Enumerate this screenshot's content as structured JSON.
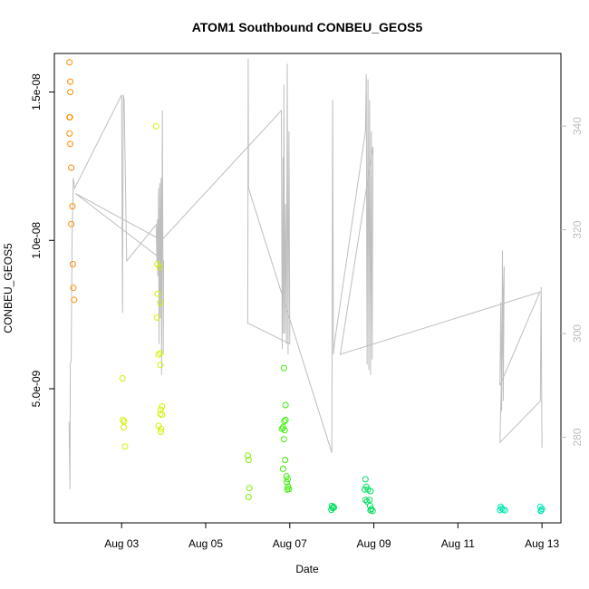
{
  "chart_data": {
    "type": "scatter",
    "title": "ATOM1 Southbound CONBEU_GEOS5",
    "xlabel": "Date",
    "ylabel": "CONBEU_GEOS5",
    "x_axis": {
      "ticks": [
        3,
        5,
        7,
        9,
        11,
        13
      ],
      "tick_labels": [
        "Aug 03",
        "Aug 05",
        "Aug 07",
        "Aug 09",
        "Aug 11",
        "Aug 13"
      ],
      "range_days": [
        1.4,
        13.45
      ]
    },
    "y_axis_left": {
      "ticks": [
        5e-09,
        1e-08,
        1.5e-08
      ],
      "tick_labels": [
        "5.0e-09",
        "1.0e-08",
        "1.5e-08"
      ],
      "range": [
        4.8e-10,
        1.63e-08
      ]
    },
    "y_axis_right": {
      "ticks": [
        280,
        300,
        320,
        340
      ],
      "tick_labels": [
        "280",
        "300",
        "320",
        "340"
      ],
      "range": [
        263.5,
        354
      ],
      "color": "#bebebe"
    },
    "line_color": "#bebebe",
    "scatter_series": {
      "marker": "open-circle",
      "points": [
        {
          "x": 1.76,
          "y": 1.6e-08,
          "c": "#ff8c00"
        },
        {
          "x": 1.78,
          "y": 1.535e-08,
          "c": "#ff8c00"
        },
        {
          "x": 1.78,
          "y": 1.5e-08,
          "c": "#ff8c00"
        },
        {
          "x": 1.77,
          "y": 1.415e-08,
          "c": "#ff8c00"
        },
        {
          "x": 1.76,
          "y": 1.415e-08,
          "c": "#ff8c00"
        },
        {
          "x": 1.76,
          "y": 1.36e-08,
          "c": "#ff8c00"
        },
        {
          "x": 1.78,
          "y": 1.325e-08,
          "c": "#ff8c00"
        },
        {
          "x": 1.8,
          "y": 1.245e-08,
          "c": "#ff8c00"
        },
        {
          "x": 1.83,
          "y": 1.115e-08,
          "c": "#ff8c00"
        },
        {
          "x": 1.8,
          "y": 1.055e-08,
          "c": "#ff8c00"
        },
        {
          "x": 1.84,
          "y": 9.2e-09,
          "c": "#ff8c00"
        },
        {
          "x": 1.85,
          "y": 8.4e-09,
          "c": "#ff8c00"
        },
        {
          "x": 1.87,
          "y": 8e-09,
          "c": "#ff8c00"
        },
        {
          "x": 3.02,
          "y": 5.35e-09,
          "c": "#d4f000"
        },
        {
          "x": 3.03,
          "y": 3.95e-09,
          "c": "#d4f000"
        },
        {
          "x": 3.06,
          "y": 3.9e-09,
          "c": "#d4f000"
        },
        {
          "x": 3.05,
          "y": 3.7e-09,
          "c": "#d4f000"
        },
        {
          "x": 3.08,
          "y": 3.05e-09,
          "c": "#d4f000"
        },
        {
          "x": 3.82,
          "y": 1.385e-08,
          "c": "#d4f000"
        },
        {
          "x": 3.85,
          "y": 9.2e-09,
          "c": "#d4f000"
        },
        {
          "x": 3.9,
          "y": 9.1e-09,
          "c": "#d4f000"
        },
        {
          "x": 3.86,
          "y": 8.2e-09,
          "c": "#d4f000"
        },
        {
          "x": 3.92,
          "y": 7.9e-09,
          "c": "#d4f000"
        },
        {
          "x": 3.84,
          "y": 7.4e-09,
          "c": "#d4f000"
        },
        {
          "x": 3.88,
          "y": 6.15e-09,
          "c": "#d4f000"
        },
        {
          "x": 3.92,
          "y": 6.2e-09,
          "c": "#d4f000"
        },
        {
          "x": 3.92,
          "y": 5.8e-09,
          "c": "#d4f000"
        },
        {
          "x": 3.96,
          "y": 4.4e-09,
          "c": "#d4f000"
        },
        {
          "x": 3.93,
          "y": 4.3e-09,
          "c": "#d4f000"
        },
        {
          "x": 3.92,
          "y": 4.15e-09,
          "c": "#d4f000"
        },
        {
          "x": 3.96,
          "y": 4.12e-09,
          "c": "#d4f000"
        },
        {
          "x": 3.88,
          "y": 3.75e-09,
          "c": "#d4f000"
        },
        {
          "x": 3.94,
          "y": 3.65e-09,
          "c": "#d4f000"
        },
        {
          "x": 3.93,
          "y": 3.55e-09,
          "c": "#d4f000"
        },
        {
          "x": 6.0,
          "y": 2.75e-09,
          "c": "#7cf000"
        },
        {
          "x": 6.02,
          "y": 2.6e-09,
          "c": "#7cf000"
        },
        {
          "x": 6.04,
          "y": 1.65e-09,
          "c": "#7cf000"
        },
        {
          "x": 6.02,
          "y": 1.35e-09,
          "c": "#7cf000"
        },
        {
          "x": 6.86,
          "y": 5.7e-09,
          "c": "#38f000"
        },
        {
          "x": 6.9,
          "y": 4.45e-09,
          "c": "#38f000"
        },
        {
          "x": 6.9,
          "y": 3.95e-09,
          "c": "#38f000"
        },
        {
          "x": 6.87,
          "y": 3.9e-09,
          "c": "#38f000"
        },
        {
          "x": 6.84,
          "y": 3.7e-09,
          "c": "#38f000"
        },
        {
          "x": 6.81,
          "y": 3.65e-09,
          "c": "#38f000"
        },
        {
          "x": 6.88,
          "y": 3.6e-09,
          "c": "#38f000"
        },
        {
          "x": 6.86,
          "y": 3.3e-09,
          "c": "#38f000"
        },
        {
          "x": 6.89,
          "y": 2.6e-09,
          "c": "#38f000"
        },
        {
          "x": 6.84,
          "y": 2.3e-09,
          "c": "#38f000"
        },
        {
          "x": 6.92,
          "y": 2.05e-09,
          "c": "#38f000"
        },
        {
          "x": 6.95,
          "y": 1.95e-09,
          "c": "#38f000"
        },
        {
          "x": 6.93,
          "y": 1.85e-09,
          "c": "#38f000"
        },
        {
          "x": 6.96,
          "y": 1.7e-09,
          "c": "#38f000"
        },
        {
          "x": 6.94,
          "y": 1.6e-09,
          "c": "#38f000"
        },
        {
          "x": 6.98,
          "y": 1.62e-09,
          "c": "#38f000"
        },
        {
          "x": 8.0,
          "y": 1.05e-09,
          "c": "#00e060"
        },
        {
          "x": 8.02,
          "y": 9.8e-10,
          "c": "#00e060"
        },
        {
          "x": 8.04,
          "y": 1.02e-09,
          "c": "#00e060"
        },
        {
          "x": 8.05,
          "y": 1e-09,
          "c": "#00e060"
        },
        {
          "x": 7.99,
          "y": 9.2e-10,
          "c": "#00e060"
        },
        {
          "x": 8.8,
          "y": 1.95e-09,
          "c": "#00e060"
        },
        {
          "x": 8.82,
          "y": 1.7e-09,
          "c": "#00e060"
        },
        {
          "x": 8.86,
          "y": 1.6e-09,
          "c": "#00e060"
        },
        {
          "x": 8.78,
          "y": 1.6e-09,
          "c": "#00e060"
        },
        {
          "x": 8.92,
          "y": 1.55e-09,
          "c": "#00e060"
        },
        {
          "x": 8.8,
          "y": 1.25e-09,
          "c": "#00e060"
        },
        {
          "x": 8.84,
          "y": 1.2e-09,
          "c": "#00e060"
        },
        {
          "x": 8.9,
          "y": 1.25e-09,
          "c": "#00e060"
        },
        {
          "x": 8.91,
          "y": 1.05e-09,
          "c": "#00e060"
        },
        {
          "x": 8.94,
          "y": 9.5e-10,
          "c": "#00e060"
        },
        {
          "x": 8.92,
          "y": 9e-10,
          "c": "#00e060"
        },
        {
          "x": 8.97,
          "y": 8.8e-10,
          "c": "#00e060"
        },
        {
          "x": 12.02,
          "y": 1.02e-09,
          "c": "#00e8b0"
        },
        {
          "x": 12.04,
          "y": 9.6e-10,
          "c": "#00e8b0"
        },
        {
          "x": 12.0,
          "y": 9.1e-10,
          "c": "#00e8b0"
        },
        {
          "x": 12.08,
          "y": 9.3e-10,
          "c": "#00e8b0"
        },
        {
          "x": 12.12,
          "y": 9e-10,
          "c": "#00e8b0"
        },
        {
          "x": 12.96,
          "y": 1.02e-09,
          "c": "#00e8b0"
        },
        {
          "x": 12.98,
          "y": 9e-10,
          "c": "#00e8b0"
        },
        {
          "x": 13.0,
          "y": 9.5e-10,
          "c": "#00e8b0"
        },
        {
          "x": 12.97,
          "y": 8.8e-10,
          "c": "#00e8b0"
        }
      ]
    },
    "line_series": {
      "axis": "right",
      "points": [
        [
          1.75,
          283
        ],
        [
          1.77,
          270
        ],
        [
          1.78,
          294
        ],
        [
          1.8,
          295
        ],
        [
          1.82,
          318
        ],
        [
          1.85,
          330
        ],
        [
          1.88,
          328
        ],
        [
          3.0,
          346
        ],
        [
          3.02,
          304
        ],
        [
          3.04,
          346
        ],
        [
          3.06,
          345
        ],
        [
          3.12,
          314
        ],
        [
          3.82,
          321
        ],
        [
          3.84,
          314
        ],
        [
          3.85,
          322
        ],
        [
          3.86,
          311
        ],
        [
          3.88,
          328
        ],
        [
          3.89,
          298
        ],
        [
          3.91,
          329
        ],
        [
          3.92,
          303
        ],
        [
          3.94,
          330
        ],
        [
          3.95,
          292
        ],
        [
          3.97,
          343
        ],
        [
          3.99,
          296
        ],
        [
          4.0,
          314
        ],
        [
          1.9,
          327
        ],
        [
          3.95,
          318
        ],
        [
          6.8,
          343
        ],
        [
          6.82,
          297
        ],
        [
          6.84,
          334
        ],
        [
          6.85,
          300
        ],
        [
          6.86,
          348
        ],
        [
          6.88,
          300
        ],
        [
          6.9,
          325
        ],
        [
          6.92,
          298
        ],
        [
          6.94,
          352
        ],
        [
          6.96,
          296
        ],
        [
          6.98,
          339
        ],
        [
          7.0,
          298
        ],
        [
          6.0,
          302
        ],
        [
          6.01,
          353
        ],
        [
          6.02,
          328
        ],
        [
          8.0,
          277
        ],
        [
          8.02,
          345
        ],
        [
          8.04,
          296
        ],
        [
          8.06,
          298
        ],
        [
          8.8,
          339
        ],
        [
          8.82,
          350
        ],
        [
          8.84,
          294
        ],
        [
          8.86,
          349
        ],
        [
          8.88,
          293
        ],
        [
          8.9,
          345
        ],
        [
          8.92,
          292
        ],
        [
          8.94,
          339
        ],
        [
          8.96,
          295
        ],
        [
          8.98,
          336
        ],
        [
          8.2,
          296
        ],
        [
          12.95,
          308
        ],
        [
          12.0,
          290
        ],
        [
          12.02,
          306
        ],
        [
          12.04,
          285
        ],
        [
          12.06,
          316
        ],
        [
          12.08,
          287
        ],
        [
          12.1,
          313
        ],
        [
          12.0,
          279
        ],
        [
          12.96,
          287
        ],
        [
          12.98,
          309
        ],
        [
          13.0,
          278
        ]
      ]
    }
  }
}
